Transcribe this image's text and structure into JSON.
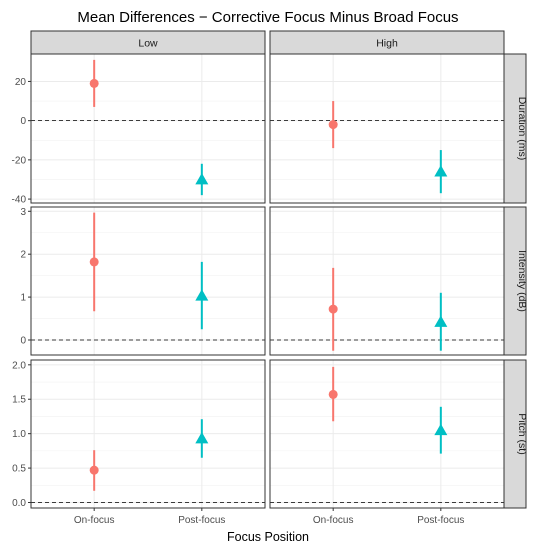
{
  "chart_data": {
    "type": "scatter",
    "title": "Mean Differences − Corrective Focus Minus Broad Focus",
    "xlabel": "Focus Position",
    "x_categories": [
      "On-focus",
      "Post-focus"
    ],
    "columns": [
      "Low",
      "High"
    ],
    "series_colors": {
      "On-focus": "#F8766D",
      "Post-focus": "#00BFC4"
    },
    "series_shapes": {
      "On-focus": "circle",
      "Post-focus": "triangle"
    },
    "reference_line": 0,
    "grid": true,
    "legend": "none",
    "rows": [
      {
        "label": "Duration (ms)",
        "ylim": [
          -42,
          34
        ],
        "ticks": [
          -40,
          -20,
          0,
          20
        ],
        "tick_labels": [
          "-40",
          "-20",
          "0",
          "20"
        ],
        "panels": [
          {
            "column": "Low",
            "points": [
              {
                "x": "On-focus",
                "y": 19,
                "low": 7,
                "high": 31
              },
              {
                "x": "Post-focus",
                "y": -30,
                "low": -38,
                "high": -22
              }
            ]
          },
          {
            "column": "High",
            "points": [
              {
                "x": "On-focus",
                "y": -2,
                "low": -14,
                "high": 10
              },
              {
                "x": "Post-focus",
                "y": -26,
                "low": -37,
                "high": -15
              }
            ]
          }
        ]
      },
      {
        "label": "Intensity (dB)",
        "ylim": [
          -0.35,
          3.1
        ],
        "ticks": [
          0,
          1,
          2,
          3
        ],
        "tick_labels": [
          "0",
          "1",
          "2",
          "3"
        ],
        "panels": [
          {
            "column": "Low",
            "points": [
              {
                "x": "On-focus",
                "y": 1.82,
                "low": 0.67,
                "high": 2.97
              },
              {
                "x": "Post-focus",
                "y": 1.03,
                "low": 0.25,
                "high": 1.82
              }
            ]
          },
          {
            "column": "High",
            "points": [
              {
                "x": "On-focus",
                "y": 0.72,
                "low": -0.25,
                "high": 1.68
              },
              {
                "x": "Post-focus",
                "y": 0.42,
                "low": -0.25,
                "high": 1.1
              }
            ]
          }
        ]
      },
      {
        "label": "Pitch (st)",
        "ylim": [
          -0.08,
          2.07
        ],
        "ticks": [
          0,
          0.5,
          1,
          1.5,
          2
        ],
        "tick_labels": [
          "0.0",
          "0.5",
          "1.0",
          "1.5",
          "2.0"
        ],
        "panels": [
          {
            "column": "Low",
            "points": [
              {
                "x": "On-focus",
                "y": 0.47,
                "low": 0.17,
                "high": 0.76
              },
              {
                "x": "Post-focus",
                "y": 0.93,
                "low": 0.65,
                "high": 1.21
              }
            ]
          },
          {
            "column": "High",
            "points": [
              {
                "x": "On-focus",
                "y": 1.57,
                "low": 1.18,
                "high": 1.97
              },
              {
                "x": "Post-focus",
                "y": 1.05,
                "low": 0.71,
                "high": 1.39
              }
            ]
          }
        ]
      }
    ]
  }
}
